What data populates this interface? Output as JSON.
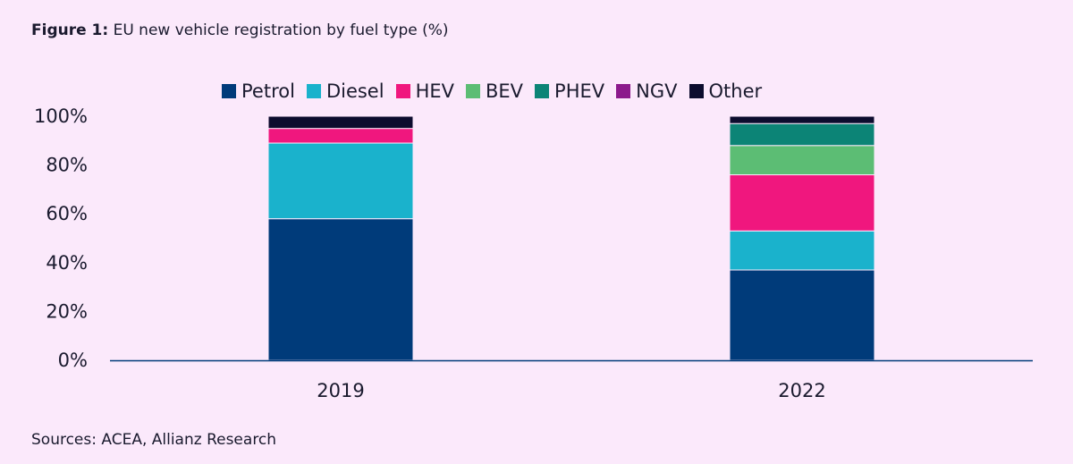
{
  "figure": {
    "label": "Figure 1:",
    "title": "EU new vehicle registration by fuel type (%)",
    "source": "Sources: ACEA, Allianz Research"
  },
  "chart_data": {
    "type": "bar",
    "stacked": true,
    "categories": [
      "2019",
      "2022"
    ],
    "series": [
      {
        "name": "Petrol",
        "color": "#003b7a",
        "values": [
          58,
          37
        ]
      },
      {
        "name": "Diesel",
        "color": "#1ab2cc",
        "values": [
          31,
          16
        ]
      },
      {
        "name": "HEV",
        "color": "#f0177e",
        "values": [
          6,
          23
        ]
      },
      {
        "name": "BEV",
        "color": "#5cbd74",
        "values": [
          0,
          12
        ]
      },
      {
        "name": "PHEV",
        "color": "#0c8476",
        "values": [
          0,
          9
        ]
      },
      {
        "name": "NGV",
        "color": "#8c1a8c",
        "values": [
          0,
          0
        ]
      },
      {
        "name": "Other",
        "color": "#0c0c2e",
        "values": [
          5,
          3
        ]
      }
    ],
    "yticks": [
      "0%",
      "20%",
      "40%",
      "60%",
      "80%",
      "100%"
    ],
    "ylim": [
      0,
      100
    ],
    "grid": false,
    "legend_position": "top"
  }
}
